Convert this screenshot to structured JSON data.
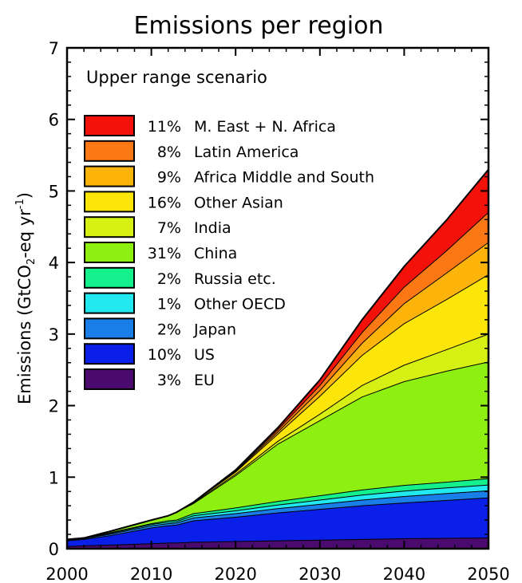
{
  "chart_data": {
    "type": "area",
    "title": "Emissions per region",
    "subtitle": "Upper range scenario",
    "ylabel": {
      "prefix": "Emissions (GtCO",
      "sub": "2",
      "mid": "-eq yr",
      "sup": "-1",
      "suffix": ")"
    },
    "xlabel": "",
    "xlim": [
      2000,
      2050
    ],
    "ylim": [
      0,
      7
    ],
    "xticks": [
      2000,
      2010,
      2020,
      2030,
      2040,
      2050
    ],
    "yticks": [
      0,
      1,
      2,
      3,
      4,
      5,
      6,
      7
    ],
    "stacked": true,
    "x": [
      2000,
      2002,
      2005,
      2010,
      2012,
      2013,
      2015,
      2020,
      2025,
      2030,
      2035,
      2040,
      2045,
      2050
    ],
    "series": [
      {
        "name": "EU",
        "share": "3%",
        "color": "#4a0a6e",
        "values": [
          0.03,
          0.04,
          0.05,
          0.07,
          0.08,
          0.08,
          0.09,
          0.1,
          0.11,
          0.12,
          0.13,
          0.14,
          0.145,
          0.15
        ]
      },
      {
        "name": "US",
        "share": "10%",
        "color": "#0a20e8",
        "values": [
          0.08,
          0.09,
          0.13,
          0.22,
          0.24,
          0.25,
          0.3,
          0.34,
          0.39,
          0.43,
          0.47,
          0.5,
          0.53,
          0.56
        ]
      },
      {
        "name": "Japan",
        "share": "2%",
        "color": "#1a7ee8",
        "values": [
          0.01,
          0.01,
          0.02,
          0.03,
          0.03,
          0.03,
          0.04,
          0.05,
          0.06,
          0.07,
          0.08,
          0.09,
          0.095,
          0.1
        ]
      },
      {
        "name": "Other OECD",
        "share": "1%",
        "color": "#22e8f0",
        "values": [
          0.01,
          0.01,
          0.01,
          0.02,
          0.02,
          0.02,
          0.03,
          0.04,
          0.05,
          0.06,
          0.07,
          0.075,
          0.08,
          0.08
        ]
      },
      {
        "name": "Russia etc.",
        "share": "2%",
        "color": "#14f08c",
        "values": [
          0.0,
          0.0,
          0.01,
          0.01,
          0.02,
          0.02,
          0.03,
          0.04,
          0.05,
          0.06,
          0.07,
          0.08,
          0.08,
          0.09
        ]
      },
      {
        "name": "China",
        "share": "31%",
        "color": "#8ef010",
        "values": [
          0.0,
          0.0,
          0.02,
          0.05,
          0.07,
          0.11,
          0.14,
          0.45,
          0.8,
          1.05,
          1.3,
          1.45,
          1.55,
          1.63
        ]
      },
      {
        "name": "India",
        "share": "7%",
        "color": "#d6f014",
        "values": [
          0.0,
          0.0,
          0.0,
          0.0,
          0.0,
          0.0,
          0.01,
          0.02,
          0.04,
          0.09,
          0.16,
          0.23,
          0.3,
          0.39
        ]
      },
      {
        "name": "Other Asian",
        "share": "16%",
        "color": "#fce60a",
        "values": [
          0.0,
          0.0,
          0.0,
          0.0,
          0.0,
          0.0,
          0.01,
          0.03,
          0.1,
          0.25,
          0.42,
          0.58,
          0.7,
          0.83
        ]
      },
      {
        "name": "Africa Middle and South",
        "share": "9%",
        "color": "#fcb40a",
        "values": [
          0.0,
          0.0,
          0.0,
          0.0,
          0.0,
          0.0,
          0.0,
          0.01,
          0.03,
          0.08,
          0.17,
          0.28,
          0.37,
          0.45
        ]
      },
      {
        "name": "Latin America",
        "share": "8%",
        "color": "#fc7814",
        "values": [
          0.0,
          0.0,
          0.0,
          0.0,
          0.0,
          0.0,
          0.0,
          0.01,
          0.03,
          0.07,
          0.15,
          0.23,
          0.31,
          0.42
        ]
      },
      {
        "name": "M. East + N. Africa",
        "share": "11%",
        "color": "#f2120a",
        "values": [
          0.0,
          0.0,
          0.0,
          0.0,
          0.0,
          0.0,
          0.0,
          0.01,
          0.03,
          0.08,
          0.18,
          0.29,
          0.43,
          0.6
        ]
      }
    ],
    "legend_placement": "top-left",
    "grid": false
  }
}
